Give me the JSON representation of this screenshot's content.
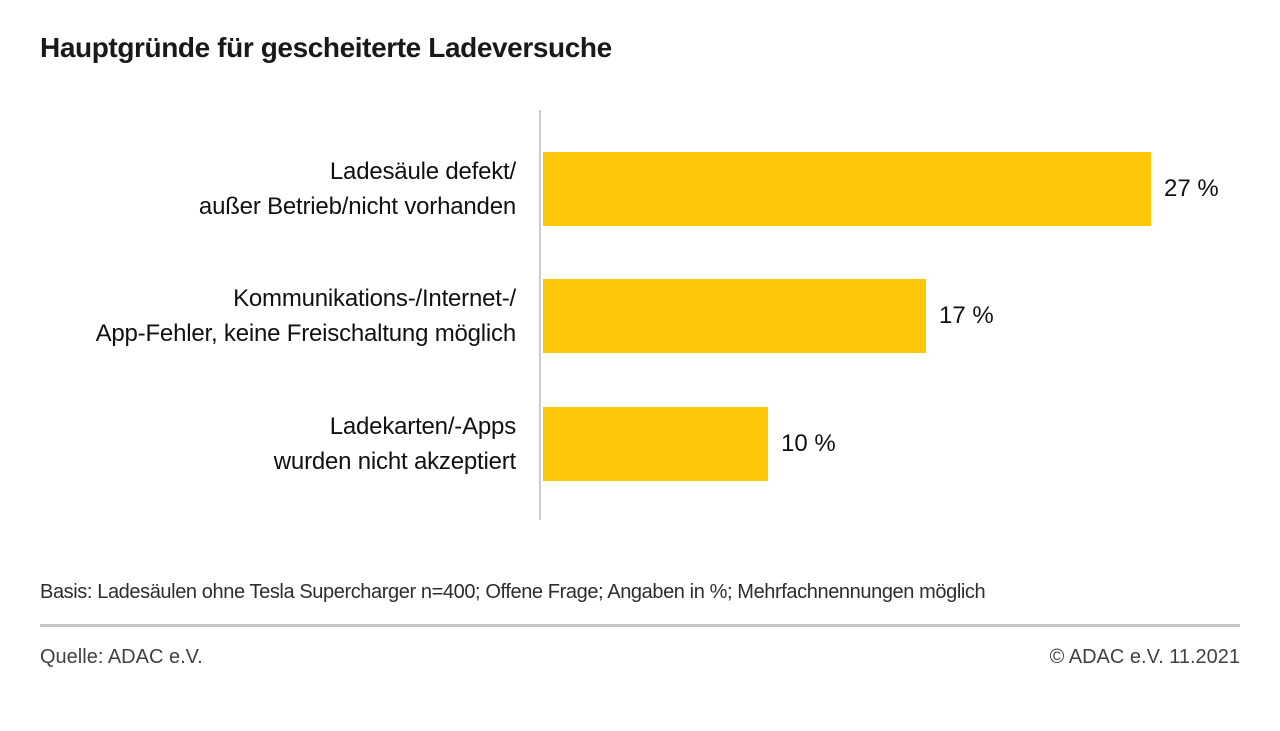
{
  "page": {
    "background": "#ffffff"
  },
  "chart_data": {
    "type": "bar",
    "orientation": "horizontal",
    "title": "Hauptgründe für gescheiterte Ladeversuche",
    "categories": [
      "Ladesäule defekt/\naußer Betrieb/nicht vorhanden",
      "Kommunikations-/Internet-/\nApp-Fehler, keine Freischaltung möglich",
      "Ladekarten/-Apps\nwurden nicht akzeptiert"
    ],
    "values": [
      27,
      17,
      10
    ],
    "value_labels": [
      "27 %",
      "17 %",
      "10 %"
    ],
    "unit": "%",
    "xlim": [
      0,
      28
    ],
    "grid": false,
    "legend": "none",
    "bar_color": "#FDC70A",
    "axis_color": "#CCCCCC"
  },
  "footer": {
    "basis": "Basis: Ladesäulen ohne Tesla Supercharger n=400; Offene Frage; Angaben in %; Mehrfachnennungen möglich",
    "source": "Quelle: ADAC e.V.",
    "copyright": "© ADAC e.V. 11.2021"
  }
}
